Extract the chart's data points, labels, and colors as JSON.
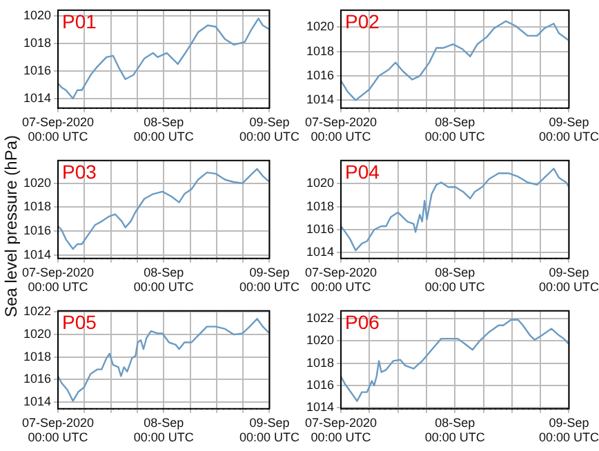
{
  "chart_data": [
    {
      "type": "line",
      "title": "P01",
      "x": [
        "2020-09-07T00:00",
        "2020-09-07T00:48",
        "2020-09-07T01:48",
        "2020-09-07T03:24",
        "2020-09-07T04:24",
        "2020-09-07T05:24",
        "2020-09-07T07:24",
        "2020-09-07T08:54",
        "2020-09-07T11:00",
        "2020-09-07T12:30",
        "2020-09-07T13:42",
        "2020-09-07T15:18",
        "2020-09-07T17:06",
        "2020-09-07T19:36",
        "2020-09-07T21:36",
        "2020-09-07T22:36",
        "2020-09-08T00:42",
        "2020-09-08T03:12",
        "2020-09-08T04:42",
        "2020-09-08T06:18",
        "2020-09-08T07:48",
        "2020-09-08T10:00",
        "2020-09-08T11:48",
        "2020-09-08T13:54",
        "2020-09-08T15:54",
        "2020-09-08T18:24",
        "2020-09-08T19:54",
        "2020-09-08T21:30",
        "2020-09-08T22:30",
        "2020-09-09T00:00"
      ],
      "series": [
        {
          "color": "#6a9bc3",
          "values": [
            1015.1,
            1014.8,
            1014.6,
            1014.0,
            1014.6,
            1014.6,
            1015.7,
            1016.3,
            1017.0,
            1017.1,
            1016.3,
            1015.4,
            1015.7,
            1016.9,
            1017.3,
            1017.0,
            1017.3,
            1016.5,
            1017.2,
            1018.0,
            1018.8,
            1019.3,
            1019.2,
            1018.3,
            1017.9,
            1018.1,
            1019.0,
            1019.8,
            1019.3,
            1019.0
          ]
        }
      ],
      "xlim": [
        "2020-09-07T00:00",
        "2020-09-09T00:00"
      ],
      "ylim": [
        1013.3,
        1020.4
      ],
      "yticks": [
        1014,
        1016,
        1018,
        1020
      ],
      "xticks": [
        {
          "value": "2020-09-07T00:00",
          "label": "07-Sep-2020\n00:00 UTC"
        },
        {
          "value": "2020-09-07T06:00",
          "label": null
        },
        {
          "value": "2020-09-07T12:00",
          "label": null
        },
        {
          "value": "2020-09-07T18:00",
          "label": null
        },
        {
          "value": "2020-09-08T00:00",
          "label": "08-Sep\n00:00 UTC"
        },
        {
          "value": "2020-09-08T06:00",
          "label": null
        },
        {
          "value": "2020-09-08T12:00",
          "label": null
        },
        {
          "value": "2020-09-08T18:00",
          "label": null
        },
        {
          "value": "2020-09-09T00:00",
          "label": "09-Sep\n00:00 UTC"
        }
      ],
      "grid": true
    },
    {
      "type": "line",
      "title": "P02",
      "x": [
        "2020-09-07T00:00",
        "2020-09-07T01:24",
        "2020-09-07T03:06",
        "2020-09-07T04:24",
        "2020-09-07T06:00",
        "2020-09-07T08:00",
        "2020-09-07T10:00",
        "2020-09-07T11:30",
        "2020-09-07T13:00",
        "2020-09-07T15:00",
        "2020-09-07T16:36",
        "2020-09-07T18:36",
        "2020-09-07T20:06",
        "2020-09-07T21:36",
        "2020-09-07T23:36",
        "2020-09-08T01:36",
        "2020-09-08T03:12",
        "2020-09-08T04:42",
        "2020-09-08T06:42",
        "2020-09-08T08:12",
        "2020-09-08T10:42",
        "2020-09-08T12:48",
        "2020-09-08T15:18",
        "2020-09-08T17:18",
        "2020-09-08T18:48",
        "2020-09-08T20:48",
        "2020-09-08T21:54",
        "2020-09-09T00:00"
      ],
      "series": [
        {
          "color": "#6a9bc3",
          "values": [
            1015.6,
            1014.7,
            1014.0,
            1014.4,
            1014.9,
            1016.0,
            1016.5,
            1017.1,
            1016.4,
            1015.7,
            1016.0,
            1017.1,
            1018.3,
            1018.3,
            1018.6,
            1018.2,
            1017.6,
            1018.6,
            1019.2,
            1019.9,
            1020.5,
            1020.1,
            1019.3,
            1019.3,
            1019.9,
            1020.3,
            1019.5,
            1018.9
          ]
        }
      ],
      "xlim": [
        "2020-09-07T00:00",
        "2020-09-09T00:00"
      ],
      "ylim": [
        1013.35,
        1021.4
      ],
      "yticks": [
        1014,
        1016,
        1018,
        1020
      ],
      "xticks": [
        {
          "value": "2020-09-07T00:00",
          "label": "07-Sep-2020\n00:00 UTC"
        },
        {
          "value": "2020-09-07T06:00",
          "label": null
        },
        {
          "value": "2020-09-07T12:00",
          "label": null
        },
        {
          "value": "2020-09-07T18:00",
          "label": null
        },
        {
          "value": "2020-09-08T00:00",
          "label": "08-Sep\n00:00 UTC"
        },
        {
          "value": "2020-09-08T06:00",
          "label": null
        },
        {
          "value": "2020-09-08T12:00",
          "label": null
        },
        {
          "value": "2020-09-08T18:00",
          "label": null
        },
        {
          "value": "2020-09-09T00:00",
          "label": "09-Sep\n00:00 UTC"
        }
      ],
      "grid": true
    },
    {
      "type": "line",
      "title": "P03",
      "ylabel": "Sea level pressure (hPa)",
      "x": [
        "2020-09-07T00:00",
        "2020-09-07T00:48",
        "2020-09-07T01:48",
        "2020-09-07T03:24",
        "2020-09-07T04:24",
        "2020-09-07T05:24",
        "2020-09-07T06:54",
        "2020-09-07T08:24",
        "2020-09-07T09:54",
        "2020-09-07T11:30",
        "2020-09-07T13:00",
        "2020-09-07T14:30",
        "2020-09-07T15:18",
        "2020-09-07T16:30",
        "2020-09-07T17:36",
        "2020-09-07T19:36",
        "2020-09-07T21:36",
        "2020-09-07T23:42",
        "2020-09-08T01:42",
        "2020-09-08T03:30",
        "2020-09-08T04:42",
        "2020-09-08T06:18",
        "2020-09-08T07:48",
        "2020-09-08T09:48",
        "2020-09-08T11:48",
        "2020-09-08T13:54",
        "2020-09-08T15:54",
        "2020-09-08T17:54",
        "2020-09-08T19:30",
        "2020-09-08T21:12",
        "2020-09-08T22:30",
        "2020-09-09T00:00"
      ],
      "series": [
        {
          "color": "#6a9bc3",
          "values": [
            1016.4,
            1016.1,
            1015.3,
            1014.5,
            1014.9,
            1014.9,
            1015.7,
            1016.5,
            1016.8,
            1017.2,
            1017.4,
            1016.8,
            1016.3,
            1016.8,
            1017.6,
            1018.7,
            1019.1,
            1019.3,
            1018.9,
            1018.4,
            1019.1,
            1019.5,
            1020.3,
            1020.9,
            1020.8,
            1020.3,
            1020.1,
            1020.0,
            1020.6,
            1021.2,
            1020.6,
            1020.1
          ]
        }
      ],
      "xlim": [
        "2020-09-07T00:00",
        "2020-09-09T00:00"
      ],
      "ylim": [
        1013.7,
        1021.9
      ],
      "yticks": [
        1014,
        1016,
        1018,
        1020
      ],
      "xticks": [
        {
          "value": "2020-09-07T00:00",
          "label": "07-Sep-2020\n00:00 UTC"
        },
        {
          "value": "2020-09-07T06:00",
          "label": null
        },
        {
          "value": "2020-09-07T12:00",
          "label": null
        },
        {
          "value": "2020-09-07T18:00",
          "label": null
        },
        {
          "value": "2020-09-08T00:00",
          "label": "08-Sep\n00:00 UTC"
        },
        {
          "value": "2020-09-08T06:00",
          "label": null
        },
        {
          "value": "2020-09-08T12:00",
          "label": null
        },
        {
          "value": "2020-09-08T18:00",
          "label": null
        },
        {
          "value": "2020-09-09T00:00",
          "label": "09-Sep\n00:00 UTC"
        }
      ],
      "grid": true
    },
    {
      "type": "line",
      "title": "P04",
      "x": [
        "2020-09-07T00:00",
        "2020-09-07T00:54",
        "2020-09-07T01:54",
        "2020-09-07T03:06",
        "2020-09-07T04:24",
        "2020-09-07T05:30",
        "2020-09-07T07:00",
        "2020-09-07T08:30",
        "2020-09-07T09:30",
        "2020-09-07T10:30",
        "2020-09-07T12:00",
        "2020-09-07T13:00",
        "2020-09-07T14:00",
        "2020-09-07T15:18",
        "2020-09-07T15:42",
        "2020-09-07T16:36",
        "2020-09-07T17:06",
        "2020-09-07T17:36",
        "2020-09-07T18:06",
        "2020-09-07T19:06",
        "2020-09-07T20:06",
        "2020-09-07T21:06",
        "2020-09-07T22:36",
        "2020-09-08T00:06",
        "2020-09-08T01:42",
        "2020-09-08T03:12",
        "2020-09-08T04:12",
        "2020-09-08T05:42",
        "2020-09-08T07:12",
        "2020-09-08T09:12",
        "2020-09-08T11:18",
        "2020-09-08T13:18",
        "2020-09-08T15:18",
        "2020-09-08T17:18",
        "2020-09-08T18:48",
        "2020-09-08T20:48",
        "2020-09-08T21:54",
        "2020-09-08T23:24",
        "2020-09-09T00:00"
      ],
      "series": [
        {
          "color": "#6a9bc3",
          "values": [
            1016.3,
            1015.8,
            1015.2,
            1014.2,
            1014.8,
            1015.0,
            1016.0,
            1016.3,
            1016.3,
            1017.1,
            1017.5,
            1017.1,
            1016.7,
            1016.5,
            1015.8,
            1017.3,
            1016.7,
            1018.5,
            1016.9,
            1019.1,
            1019.9,
            1020.1,
            1019.7,
            1019.7,
            1019.3,
            1018.7,
            1019.3,
            1019.7,
            1020.4,
            1020.9,
            1020.9,
            1020.6,
            1020.1,
            1019.9,
            1020.5,
            1021.3,
            1020.5,
            1020.1,
            1019.7
          ]
        }
      ],
      "xlim": [
        "2020-09-07T00:00",
        "2020-09-09T00:00"
      ],
      "ylim": [
        1013.5,
        1022
      ],
      "yticks": [
        1014,
        1016,
        1018,
        1020
      ],
      "xticks": [
        {
          "value": "2020-09-07T00:00",
          "label": "07-Sep-2020\n00:00 UTC"
        },
        {
          "value": "2020-09-07T06:00",
          "label": null
        },
        {
          "value": "2020-09-07T12:00",
          "label": null
        },
        {
          "value": "2020-09-07T18:00",
          "label": null
        },
        {
          "value": "2020-09-08T00:00",
          "label": "08-Sep\n00:00 UTC"
        },
        {
          "value": "2020-09-08T06:00",
          "label": null
        },
        {
          "value": "2020-09-08T12:00",
          "label": null
        },
        {
          "value": "2020-09-08T18:00",
          "label": null
        },
        {
          "value": "2020-09-09T00:00",
          "label": "09-Sep\n00:00 UTC"
        }
      ],
      "grid": true
    },
    {
      "type": "line",
      "title": "P05",
      "x": [
        "2020-09-07T00:00",
        "2020-09-07T00:48",
        "2020-09-07T02:06",
        "2020-09-07T03:24",
        "2020-09-07T04:36",
        "2020-09-07T05:54",
        "2020-09-07T07:24",
        "2020-09-07T08:54",
        "2020-09-07T09:54",
        "2020-09-07T11:00",
        "2020-09-07T11:42",
        "2020-09-07T12:30",
        "2020-09-07T13:42",
        "2020-09-07T14:18",
        "2020-09-07T15:00",
        "2020-09-07T15:42",
        "2020-09-07T16:48",
        "2020-09-07T17:36",
        "2020-09-07T18:06",
        "2020-09-07T18:48",
        "2020-09-07T19:24",
        "2020-09-07T20:06",
        "2020-09-07T21:06",
        "2020-09-07T22:36",
        "2020-09-07T23:42",
        "2020-09-08T01:12",
        "2020-09-08T02:42",
        "2020-09-08T03:30",
        "2020-09-08T04:42",
        "2020-09-08T06:18",
        "2020-09-08T07:48",
        "2020-09-08T09:48",
        "2020-09-08T11:48",
        "2020-09-08T13:54",
        "2020-09-08T15:54",
        "2020-09-08T17:54",
        "2020-09-08T19:30",
        "2020-09-08T21:12",
        "2020-09-08T22:30",
        "2020-09-09T00:00"
      ],
      "series": [
        {
          "color": "#6a9bc3",
          "values": [
            1016.3,
            1015.7,
            1015.1,
            1014.1,
            1014.9,
            1015.3,
            1016.5,
            1016.9,
            1016.9,
            1017.9,
            1018.3,
            1017.3,
            1017.1,
            1016.3,
            1017.1,
            1016.7,
            1017.9,
            1018.1,
            1019.3,
            1019.5,
            1018.7,
            1019.7,
            1020.3,
            1020.1,
            1020.1,
            1019.3,
            1019.1,
            1018.7,
            1019.3,
            1019.3,
            1019.9,
            1020.7,
            1020.7,
            1020.5,
            1020.0,
            1020.1,
            1020.7,
            1021.4,
            1020.7,
            1020.1
          ]
        }
      ],
      "xlim": [
        "2020-09-07T00:00",
        "2020-09-09T00:00"
      ],
      "ylim": [
        1013.4,
        1022.1
      ],
      "yticks": [
        1014,
        1016,
        1018,
        1020,
        1022
      ],
      "xticks": [
        {
          "value": "2020-09-07T00:00",
          "label": "07-Sep-2020\n00:00 UTC"
        },
        {
          "value": "2020-09-07T06:00",
          "label": null
        },
        {
          "value": "2020-09-07T12:00",
          "label": null
        },
        {
          "value": "2020-09-07T18:00",
          "label": null
        },
        {
          "value": "2020-09-08T00:00",
          "label": "08-Sep\n00:00 UTC"
        },
        {
          "value": "2020-09-08T06:00",
          "label": null
        },
        {
          "value": "2020-09-08T12:00",
          "label": null
        },
        {
          "value": "2020-09-08T18:00",
          "label": null
        },
        {
          "value": "2020-09-09T00:00",
          "label": "09-Sep\n00:00 UTC"
        }
      ],
      "grid": true
    },
    {
      "type": "line",
      "title": "P06",
      "x": [
        "2020-09-07T00:00",
        "2020-09-07T00:54",
        "2020-09-07T01:54",
        "2020-09-07T03:24",
        "2020-09-07T04:24",
        "2020-09-07T05:30",
        "2020-09-07T06:30",
        "2020-09-07T07:00",
        "2020-09-07T07:30",
        "2020-09-07T08:00",
        "2020-09-07T08:30",
        "2020-09-07T09:30",
        "2020-09-07T11:00",
        "2020-09-07T12:30",
        "2020-09-07T13:30",
        "2020-09-07T15:18",
        "2020-09-07T17:06",
        "2020-09-07T19:06",
        "2020-09-07T21:06",
        "2020-09-07T23:06",
        "2020-09-08T00:36",
        "2020-09-08T02:12",
        "2020-09-08T03:42",
        "2020-09-08T05:12",
        "2020-09-08T07:12",
        "2020-09-08T09:12",
        "2020-09-08T10:12",
        "2020-09-08T11:48",
        "2020-09-08T13:18",
        "2020-09-08T14:18",
        "2020-09-08T15:48",
        "2020-09-08T16:48",
        "2020-09-08T18:18",
        "2020-09-08T20:18",
        "2020-09-08T21:54",
        "2020-09-08T22:54",
        "2020-09-09T00:00"
      ],
      "series": [
        {
          "color": "#6a9bc3",
          "values": [
            1016.8,
            1016.1,
            1015.5,
            1014.6,
            1015.4,
            1015.4,
            1016.4,
            1016.0,
            1016.8,
            1018.2,
            1017.2,
            1017.4,
            1018.2,
            1018.3,
            1017.8,
            1017.5,
            1018.2,
            1019.2,
            1020.2,
            1020.2,
            1020.2,
            1019.7,
            1019.2,
            1020.0,
            1020.8,
            1021.4,
            1021.4,
            1021.9,
            1021.9,
            1021.4,
            1020.5,
            1020.1,
            1020.5,
            1021.1,
            1020.5,
            1020.2,
            1019.7
          ]
        }
      ],
      "xlim": [
        "2020-09-07T00:00",
        "2020-09-09T00:00"
      ],
      "ylim": [
        1013.9,
        1022.7
      ],
      "yticks": [
        1014,
        1016,
        1018,
        1020,
        1022
      ],
      "xticks": [
        {
          "value": "2020-09-07T00:00",
          "label": "07-Sep-2020\n00:00 UTC"
        },
        {
          "value": "2020-09-07T06:00",
          "label": null
        },
        {
          "value": "2020-09-07T12:00",
          "label": null
        },
        {
          "value": "2020-09-07T18:00",
          "label": null
        },
        {
          "value": "2020-09-08T00:00",
          "label": "08-Sep\n00:00 UTC"
        },
        {
          "value": "2020-09-08T06:00",
          "label": null
        },
        {
          "value": "2020-09-08T12:00",
          "label": null
        },
        {
          "value": "2020-09-08T18:00",
          "label": null
        },
        {
          "value": "2020-09-09T00:00",
          "label": "09-Sep\n00:00 UTC"
        }
      ],
      "grid": true
    }
  ]
}
